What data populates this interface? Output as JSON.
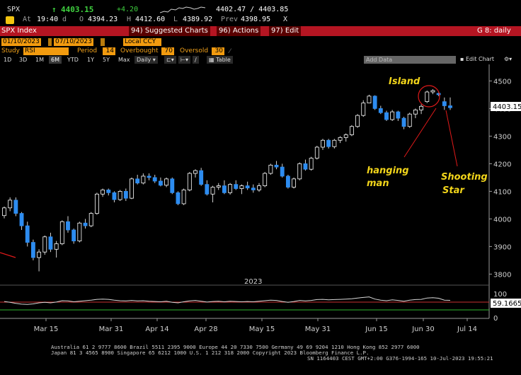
{
  "quote": {
    "ticker": "SPX",
    "last_arrow": "↑",
    "last": "4403.15",
    "change": "+4.20",
    "range_text": "4402.47 / 4403.85",
    "at_label": "At",
    "time": "19:40",
    "time_suffix": "d",
    "open_label": "O",
    "open": "4394.23",
    "high_label": "H",
    "high": "4412.60",
    "low_label": "L",
    "low": "4389.92",
    "prev_label": "Prev",
    "prev": "4398.95",
    "close_x": "X"
  },
  "redbar": {
    "security": "SPX Index",
    "menu": [
      {
        "num": "94)",
        "label": "Suggested Charts"
      },
      {
        "num": "96)",
        "label": "Actions"
      },
      {
        "num": "97)",
        "label": "Edit"
      }
    ],
    "right": "G 8: daily"
  },
  "settings": {
    "date_from": "01/10/2023",
    "date_to": "07/10/2023",
    "currency": "Local CCY",
    "study_label": "Study",
    "study_value": "RSI",
    "period_label": "Period",
    "period_value": "14",
    "overbought_label": "Overbought",
    "overbought_value": "70",
    "oversold_label": "Oversold",
    "oversold_value": "30"
  },
  "periods": {
    "items": [
      "1D",
      "3D",
      "1M",
      "6M",
      "YTD",
      "1Y",
      "5Y",
      "Max"
    ],
    "active": "6M",
    "frequency": "Daily",
    "table_label": "Table"
  },
  "toolbar": {
    "add_data": "Add Data",
    "edit_chart": "Edit Chart"
  },
  "chart_data": {
    "type": "candlestick",
    "y_ticks": [
      3800,
      3900,
      4000,
      4100,
      4200,
      4300,
      4400,
      4500
    ],
    "ylim": [
      3760,
      4560
    ],
    "last_price_label": "4403.15",
    "x_labels": [
      "Mar 15",
      "Mar 31",
      "Apr 14",
      "Apr 28",
      "May 15",
      "May 31",
      "Jun 15",
      "Jun 30",
      "Jul 14"
    ],
    "year_label": "2023",
    "candles": [
      [
        4012,
        4045,
        4002,
        4040
      ],
      [
        4040,
        4078,
        4028,
        4068
      ],
      [
        4068,
        4078,
        4010,
        4020
      ],
      [
        4020,
        4025,
        3960,
        3975
      ],
      [
        3975,
        3990,
        3900,
        3915
      ],
      [
        3915,
        3925,
        3850,
        3860
      ],
      [
        3860,
        3890,
        3810,
        3880
      ],
      [
        3880,
        3940,
        3870,
        3935
      ],
      [
        3935,
        3950,
        3880,
        3890
      ],
      [
        3890,
        3920,
        3860,
        3910
      ],
      [
        3910,
        3995,
        3905,
        3990
      ],
      [
        3990,
        4010,
        3950,
        3960
      ],
      [
        3960,
        3965,
        3910,
        3920
      ],
      [
        3920,
        3990,
        3915,
        3985
      ],
      [
        3985,
        4000,
        3965,
        3975
      ],
      [
        3975,
        4025,
        3970,
        4020
      ],
      [
        4020,
        4095,
        4015,
        4090
      ],
      [
        4090,
        4110,
        4080,
        4105
      ],
      [
        4105,
        4110,
        4085,
        4095
      ],
      [
        4095,
        4100,
        4060,
        4070
      ],
      [
        4070,
        4105,
        4065,
        4100
      ],
      [
        4100,
        4110,
        4065,
        4075
      ],
      [
        4075,
        4150,
        4072,
        4145
      ],
      [
        4145,
        4160,
        4125,
        4130
      ],
      [
        4130,
        4165,
        4125,
        4155
      ],
      [
        4155,
        4165,
        4140,
        4150
      ],
      [
        4150,
        4160,
        4130,
        4137
      ],
      [
        4137,
        4150,
        4118,
        4122
      ],
      [
        4122,
        4150,
        4115,
        4145
      ],
      [
        4145,
        4150,
        4090,
        4095
      ],
      [
        4095,
        4100,
        4050,
        4055
      ],
      [
        4055,
        4110,
        4050,
        4105
      ],
      [
        4105,
        4170,
        4100,
        4165
      ],
      [
        4165,
        4180,
        4150,
        4175
      ],
      [
        4175,
        4185,
        4120,
        4125
      ],
      [
        4125,
        4140,
        4085,
        4090
      ],
      [
        4090,
        4120,
        4060,
        4115
      ],
      [
        4115,
        4130,
        4105,
        4120
      ],
      [
        4120,
        4140,
        4090,
        4095
      ],
      [
        4095,
        4130,
        4088,
        4125
      ],
      [
        4125,
        4140,
        4105,
        4110
      ],
      [
        4110,
        4125,
        4090,
        4120
      ],
      [
        4120,
        4135,
        4105,
        4112
      ],
      [
        4112,
        4125,
        4095,
        4105
      ],
      [
        4105,
        4130,
        4098,
        4120
      ],
      [
        4120,
        4170,
        4115,
        4165
      ],
      [
        4165,
        4200,
        4160,
        4195
      ],
      [
        4195,
        4210,
        4180,
        4188
      ],
      [
        4188,
        4200,
        4150,
        4155
      ],
      [
        4155,
        4160,
        4110,
        4115
      ],
      [
        4115,
        4150,
        4110,
        4145
      ],
      [
        4145,
        4205,
        4140,
        4200
      ],
      [
        4200,
        4215,
        4175,
        4180
      ],
      [
        4180,
        4225,
        4175,
        4220
      ],
      [
        4220,
        4265,
        4215,
        4260
      ],
      [
        4260,
        4290,
        4250,
        4285
      ],
      [
        4285,
        4290,
        4255,
        4262
      ],
      [
        4262,
        4290,
        4255,
        4285
      ],
      [
        4285,
        4300,
        4275,
        4295
      ],
      [
        4295,
        4310,
        4280,
        4305
      ],
      [
        4305,
        4340,
        4300,
        4335
      ],
      [
        4335,
        4380,
        4330,
        4375
      ],
      [
        4375,
        4430,
        4370,
        4420
      ],
      [
        4420,
        4450,
        4420,
        4445
      ],
      [
        4445,
        4448,
        4395,
        4400
      ],
      [
        4400,
        4410,
        4380,
        4385
      ],
      [
        4385,
        4392,
        4355,
        4360
      ],
      [
        4360,
        4395,
        4355,
        4388
      ],
      [
        4388,
        4392,
        4355,
        4365
      ],
      [
        4365,
        4370,
        4325,
        4335
      ],
      [
        4335,
        4385,
        4330,
        4380
      ],
      [
        4380,
        4400,
        4365,
        4395
      ],
      [
        4395,
        4415,
        4380,
        4408
      ],
      [
        4425,
        4465,
        4420,
        4460
      ],
      [
        4460,
        4470,
        4452,
        4465
      ],
      [
        4455,
        4458,
        4445,
        4450
      ],
      [
        4425,
        4440,
        4395,
        4410
      ],
      [
        4410,
        4440,
        4395,
        4403
      ]
    ]
  },
  "study": {
    "y_ticks": [
      "100",
      "0"
    ],
    "value": "59.1665",
    "series": [
      55,
      52,
      48,
      45,
      44,
      46,
      50,
      52,
      50,
      53,
      58,
      57,
      54,
      56,
      58,
      60,
      63,
      64,
      63,
      60,
      58,
      57,
      59,
      57,
      58,
      56,
      55,
      54,
      56,
      52,
      50,
      54,
      57,
      59,
      56,
      53,
      55,
      56,
      54,
      56,
      55,
      54,
      55,
      54,
      56,
      58,
      60,
      59,
      55,
      52,
      55,
      59,
      57,
      59,
      62,
      63,
      61,
      62,
      63,
      64,
      65,
      68,
      70,
      72,
      64,
      60,
      58,
      61,
      59,
      56,
      60,
      62,
      63,
      68,
      69,
      67,
      60,
      59.2
    ]
  },
  "annotations": {
    "island": "Island",
    "hanging": "hanging",
    "man": "man",
    "shooting": "Shooting",
    "star": "Star"
  },
  "footer": {
    "line1": "Australia 61 2 9777 8600 Brazil 5511 2395 9000 Europe 44 20 7330 7500 Germany 49 69 9204 1210 Hong Kong 852 2977 6000",
    "line2": "Japan 81 3 4565 8900      Singapore 65 6212 1000      U.S. 1 212 318 2000      Copyright 2023 Bloomberg Finance L.P.",
    "line3": "SN 1164403 CEST GMT+2:00 G376-1994-165 10-Jul-2023 19:55:21"
  },
  "colors": {
    "up": "#ffffff",
    "down": "#2d8cf0",
    "accent": "#f29b0f",
    "bar": "#b51522",
    "annotation": "#f2d51a",
    "marker": "#e01a1a"
  }
}
